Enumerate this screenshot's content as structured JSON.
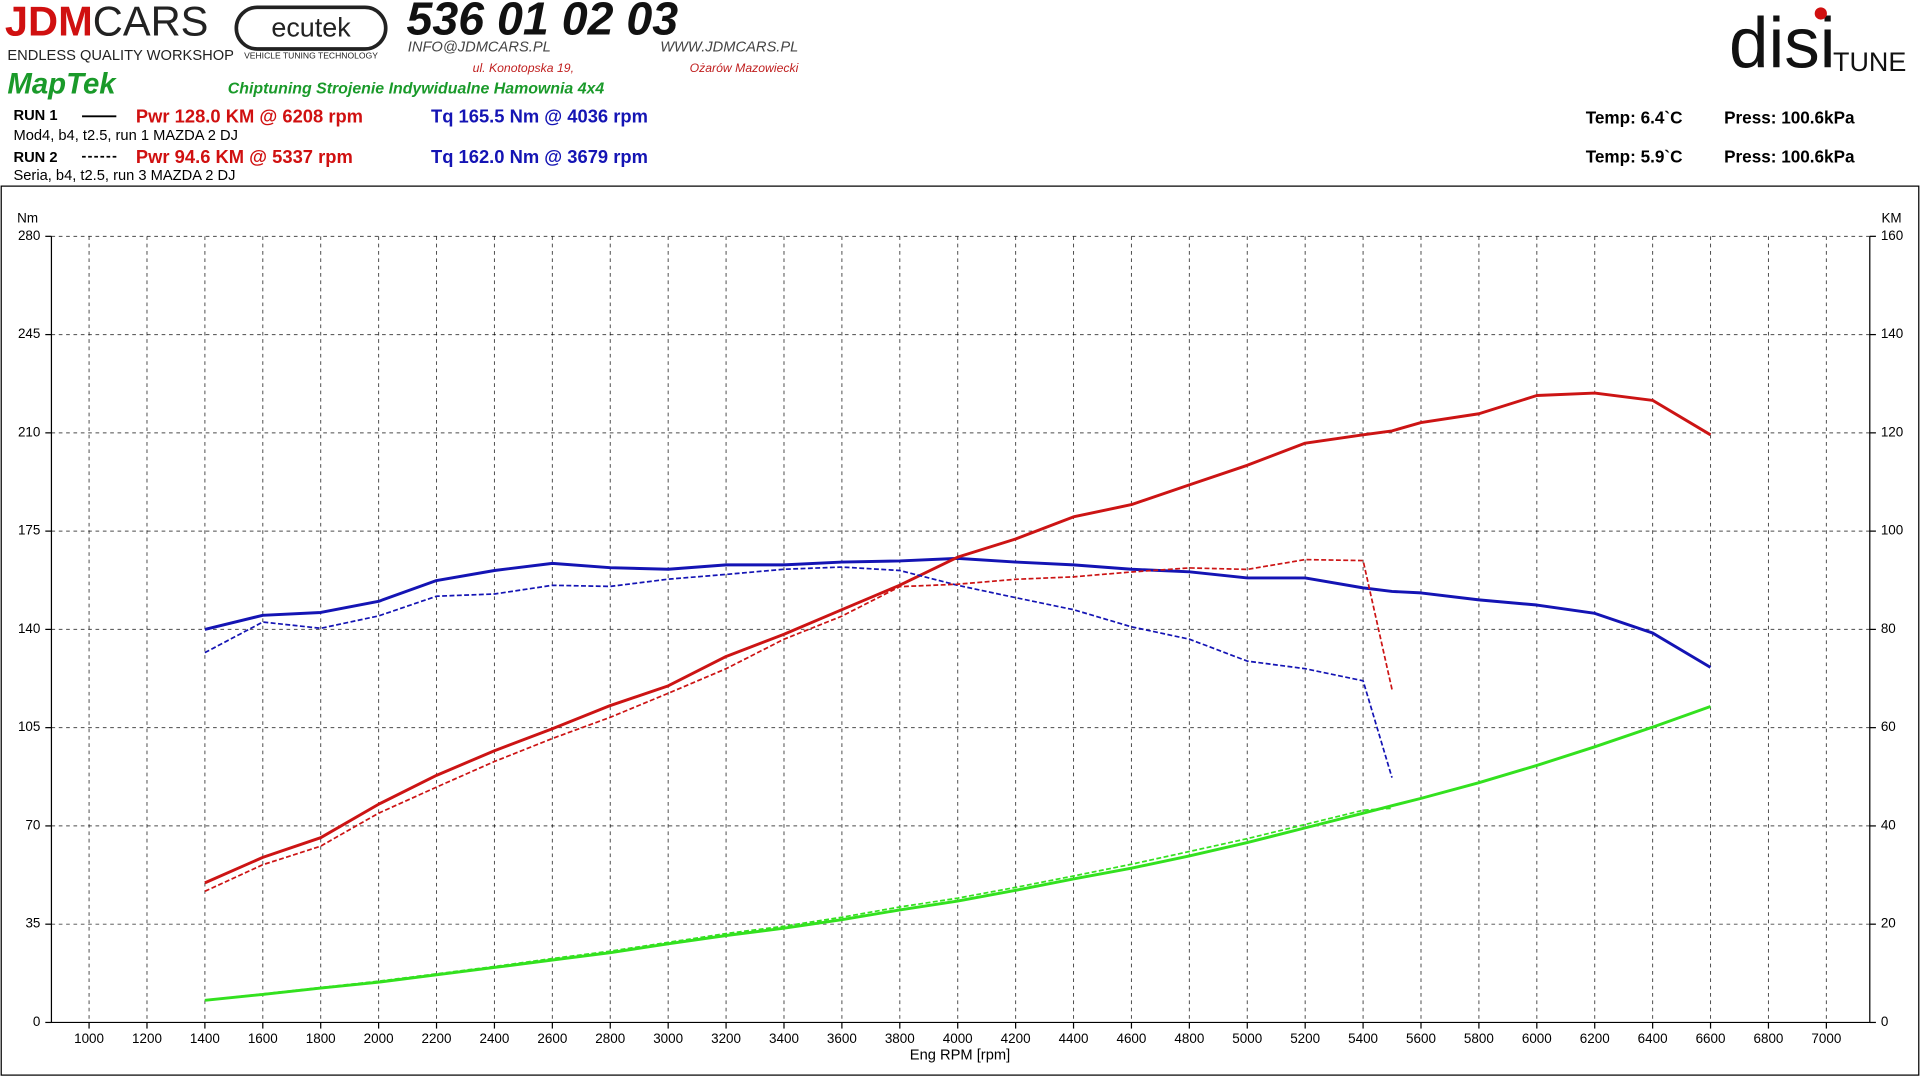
{
  "header": {
    "jdm": "JDM",
    "cars": "CARS",
    "workshop": "ENDLESS QUALITY WORKSHOP",
    "ecutek": "ecutek",
    "ecutek_sub": "VEHICLE TUNING TECHNOLOGY",
    "phone": "536 01 02 03",
    "email": "INFO@JDMCARS.PL",
    "www": "WWW.JDMCARS.PL",
    "street": "ul. Konotopska 19,",
    "city": "Ożarów Mazowiecki",
    "maptek": "MapTek",
    "services": "Chiptuning Strojenie Indywidualne Hamownia 4x4",
    "disi": "disi",
    "tune": "TUNE"
  },
  "legend": {
    "runs": [
      {
        "label": "RUN 1",
        "power": "Pwr  128.0 KM @ 6208 rpm",
        "torque": "Tq 165.5 Nm @ 4036 rpm",
        "desc": "Mod4, b4, t2.5, run 1 MAZDA 2 DJ",
        "temp": "Temp: 6.4`C",
        "press": "Press: 100.6kPa"
      },
      {
        "label": "RUN 2",
        "power": "Pwr  94.6 KM @ 5337 rpm",
        "torque": "Tq 162.0 Nm @ 3679 rpm",
        "desc": "Seria, b4, t2.5, run 3 MAZDA 2 DJ",
        "temp": "Temp: 5.9`C",
        "press": "Press: 100.6kPa"
      }
    ]
  },
  "chart_data": {
    "type": "line",
    "xlabel": "Eng RPM [rpm]",
    "ylabel": "Nm",
    "y2label": "KM",
    "grid": true,
    "x": [
      1400,
      1600,
      1800,
      2000,
      2200,
      2400,
      2600,
      2800,
      3000,
      3200,
      3400,
      3600,
      3800,
      4000,
      4200,
      4400,
      4600,
      4800,
      5000,
      5200,
      5400,
      5500,
      5600,
      5800,
      6000,
      6200,
      6400,
      6600
    ],
    "xlim": [
      870,
      7150
    ],
    "xticks": [
      1000,
      1200,
      1400,
      1600,
      1800,
      2000,
      2200,
      2400,
      2600,
      2800,
      3000,
      3200,
      3400,
      3600,
      3800,
      4000,
      4200,
      4400,
      4600,
      4800,
      5000,
      5200,
      5400,
      5600,
      5800,
      6000,
      6200,
      6400,
      6600,
      6800,
      7000
    ],
    "ylim": [
      0,
      280
    ],
    "yticks": [
      0,
      35,
      70,
      105,
      140,
      175,
      210,
      245,
      280
    ],
    "y2lim": [
      0,
      160
    ],
    "y2ticks": [
      0,
      20,
      40,
      60,
      80,
      100,
      120,
      140,
      160
    ],
    "series": [
      {
        "color": "#1414b4",
        "dash": false,
        "values": [
          140,
          145,
          146,
          150,
          157.4,
          161,
          163.5,
          162,
          161.4,
          163,
          163,
          164,
          164.4,
          165.3,
          164,
          163,
          161.4,
          160.5,
          158.3,
          158.3,
          154.8,
          153.5,
          153,
          150.5,
          148.7,
          145.7,
          138.7,
          126.5
        ]
      },
      {
        "color": "#cc1414",
        "dash": false,
        "axis": "y2",
        "values": [
          28.4,
          33.6,
          37.6,
          44.4,
          50.3,
          55.3,
          59.8,
          64.5,
          68.5,
          74.5,
          79,
          84,
          89,
          94.7,
          98.4,
          102.9,
          105.4,
          109.4,
          113.4,
          117.9,
          119.6,
          120.4,
          122.1,
          123.9,
          127.6,
          128.1,
          126.6,
          119.6
        ]
      },
      {
        "color": "#1414b4",
        "dash": true,
        "values": [
          131.7,
          142.6,
          140.4,
          144.8,
          151.8,
          152.6,
          155.7,
          155.3,
          157.9,
          159.6,
          161.4,
          162.2,
          161,
          155.7,
          151.3,
          147,
          140.9,
          136.5,
          128.7,
          126,
          121.7,
          87.2,
          null,
          null,
          null,
          null,
          null,
          null
        ]
      },
      {
        "color": "#cc1414",
        "dash": true,
        "axis": "y2",
        "values": [
          26.7,
          32.1,
          35.9,
          42.6,
          47.9,
          53.1,
          57.8,
          62.1,
          67,
          72,
          78,
          82.7,
          88.7,
          89.2,
          90.2,
          90.7,
          91.7,
          92.5,
          92.2,
          94.2,
          94,
          67.8,
          null,
          null,
          null,
          null,
          null,
          null
        ]
      },
      {
        "color": "#33e11f",
        "dash": false,
        "axis": "y2",
        "values": [
          4.5,
          5.7,
          7,
          8.2,
          9.7,
          11.2,
          12.7,
          14.2,
          16,
          17.7,
          19.2,
          20.9,
          22.9,
          24.7,
          26.9,
          29.2,
          31.4,
          33.9,
          36.6,
          39.6,
          42.6,
          44.1,
          45.6,
          48.8,
          52.3,
          56.1,
          60.1,
          64.3
        ]
      },
      {
        "color": "#33e11f",
        "dash": true,
        "axis": "y2",
        "values": [
          4.5,
          5.8,
          7.1,
          8.4,
          9.9,
          11.4,
          13,
          14.5,
          16.3,
          18.1,
          19.6,
          21.4,
          23.5,
          25.3,
          27.5,
          29.8,
          32.2,
          34.8,
          37.4,
          40.3,
          43.2,
          43.6,
          null,
          null,
          null,
          null,
          null,
          null
        ]
      }
    ]
  }
}
